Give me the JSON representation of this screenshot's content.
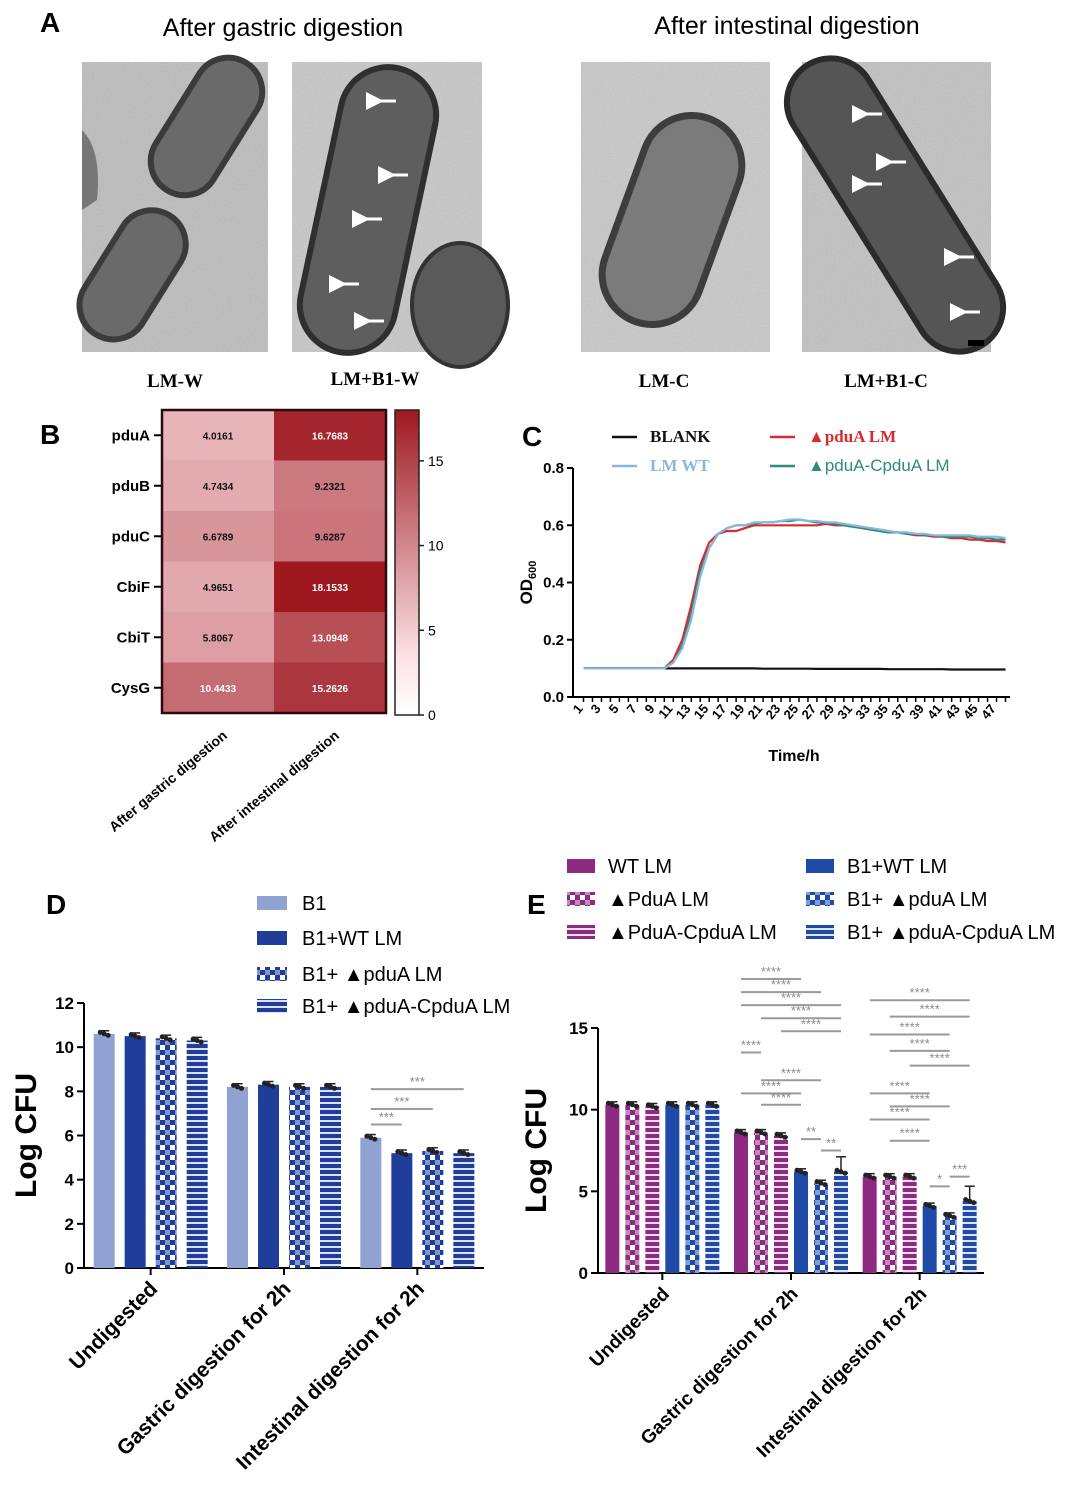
{
  "panel_a": {
    "letter": "A",
    "heading_gastric": "After gastric digestion",
    "heading_intestinal": "After intestinal digestion",
    "images": [
      {
        "label": "LM-W",
        "arrows": 0
      },
      {
        "label": "LM+B1-W",
        "arrows": 5
      },
      {
        "label": "LM-C",
        "arrows": 0
      },
      {
        "label": "LM+B1-C",
        "arrows": 5
      }
    ]
  },
  "chart_data": [
    {
      "panel": "B",
      "type": "heatmap",
      "rows": [
        "pduA",
        "pduB",
        "pduC",
        "CbiF",
        "CbiT",
        "CysG"
      ],
      "columns": [
        "After gastric digestion",
        "After intestinal digestion"
      ],
      "values": [
        [
          4.0161,
          16.7683
        ],
        [
          4.7434,
          9.2321
        ],
        [
          6.6789,
          9.6287
        ],
        [
          4.9651,
          18.1533
        ],
        [
          5.8067,
          13.0948
        ],
        [
          10.4433,
          15.2626
        ]
      ],
      "value_labels": [
        [
          "4.0161",
          "16.7683"
        ],
        [
          "4.7434",
          "9.2321"
        ],
        [
          "6.6789",
          "9.6287"
        ],
        [
          "4.9651",
          "18.1533"
        ],
        [
          "5.8067",
          "13.0948"
        ],
        [
          "10.4433",
          "15.2626"
        ]
      ],
      "colorbar": {
        "range": [
          0,
          18
        ],
        "ticks": [
          "0",
          "5",
          "10",
          "15"
        ],
        "low_color": "#fbe0e3",
        "high_color": "#9e1820"
      }
    },
    {
      "panel": "C",
      "type": "line",
      "ylabel": "OD",
      "ylabel_sub": "600",
      "xlabel": "Time/h",
      "ylim": [
        0,
        0.8
      ],
      "yticks": [
        "0.0",
        "0.2",
        "0.4",
        "0.6",
        "0.8"
      ],
      "x": [
        1,
        2,
        3,
        4,
        5,
        6,
        7,
        8,
        9,
        10,
        11,
        12,
        13,
        14,
        15,
        16,
        17,
        18,
        19,
        20,
        21,
        22,
        23,
        24,
        25,
        26,
        27,
        28,
        29,
        30,
        31,
        32,
        33,
        34,
        35,
        36,
        37,
        38,
        39,
        40,
        41,
        42,
        43,
        44,
        45,
        46,
        47,
        48
      ],
      "xticks": [
        "1",
        "3",
        "5",
        "7",
        "9",
        "11",
        "13",
        "15",
        "17",
        "19",
        "21",
        "23",
        "25",
        "27",
        "29",
        "31",
        "33",
        "35",
        "37",
        "39",
        "41",
        "43",
        "45",
        "47"
      ],
      "series": [
        {
          "name": "BLANK",
          "color": "#111111",
          "values": [
            0.1,
            0.1,
            0.1,
            0.1,
            0.1,
            0.1,
            0.1,
            0.1,
            0.1,
            0.1,
            0.1,
            0.1,
            0.1,
            0.1,
            0.1,
            0.1,
            0.1,
            0.1,
            0.1,
            0.1,
            0.099,
            0.099,
            0.099,
            0.099,
            0.099,
            0.099,
            0.098,
            0.098,
            0.098,
            0.098,
            0.098,
            0.098,
            0.098,
            0.098,
            0.097,
            0.097,
            0.097,
            0.097,
            0.097,
            0.097,
            0.097,
            0.096,
            0.096,
            0.096,
            0.096,
            0.096,
            0.096,
            0.096
          ]
        },
        {
          "name": "LM WT",
          "color": "#8ab8dc",
          "values": [
            0.1,
            0.1,
            0.1,
            0.1,
            0.1,
            0.1,
            0.1,
            0.1,
            0.1,
            0.1,
            0.12,
            0.17,
            0.27,
            0.42,
            0.52,
            0.57,
            0.59,
            0.6,
            0.6,
            0.61,
            0.61,
            0.61,
            0.615,
            0.62,
            0.62,
            0.615,
            0.615,
            0.61,
            0.61,
            0.605,
            0.6,
            0.595,
            0.59,
            0.585,
            0.58,
            0.575,
            0.575,
            0.57,
            0.57,
            0.565,
            0.565,
            0.565,
            0.565,
            0.565,
            0.56,
            0.56,
            0.56,
            0.555
          ]
        },
        {
          "name": "▲pduA LM",
          "color": "#d92b2b",
          "values": [
            0.1,
            0.1,
            0.1,
            0.1,
            0.1,
            0.1,
            0.1,
            0.1,
            0.1,
            0.1,
            0.13,
            0.2,
            0.32,
            0.46,
            0.54,
            0.57,
            0.58,
            0.58,
            0.59,
            0.6,
            0.6,
            0.6,
            0.6,
            0.6,
            0.6,
            0.6,
            0.6,
            0.605,
            0.6,
            0.6,
            0.595,
            0.59,
            0.585,
            0.58,
            0.575,
            0.575,
            0.57,
            0.565,
            0.565,
            0.56,
            0.56,
            0.555,
            0.555,
            0.55,
            0.55,
            0.545,
            0.545,
            0.54
          ]
        },
        {
          "name": "▲pduA-CpduA LM",
          "color": "#2e8b7e",
          "values": [
            0.1,
            0.1,
            0.1,
            0.1,
            0.1,
            0.1,
            0.1,
            0.1,
            0.1,
            0.1,
            0.12,
            0.18,
            0.29,
            0.44,
            0.52,
            0.57,
            0.59,
            0.6,
            0.6,
            0.605,
            0.61,
            0.61,
            0.615,
            0.615,
            0.62,
            0.615,
            0.61,
            0.61,
            0.605,
            0.6,
            0.595,
            0.59,
            0.585,
            0.58,
            0.575,
            0.575,
            0.57,
            0.57,
            0.565,
            0.565,
            0.56,
            0.56,
            0.56,
            0.56,
            0.555,
            0.555,
            0.55,
            0.55
          ]
        }
      ],
      "legend": "top"
    },
    {
      "panel": "D",
      "type": "bar",
      "ylabel": "Log CFU",
      "ylim": [
        0,
        12
      ],
      "yticks": [
        "0",
        "2",
        "4",
        "6",
        "8",
        "10",
        "12"
      ],
      "categories": [
        "Undigested",
        "Gastric digestion for 2h",
        "Intestinal digestion for 2h"
      ],
      "series": [
        {
          "name": "B1",
          "color": "#8fa2d2",
          "pattern": "solid",
          "values": [
            10.6,
            8.2,
            5.9
          ]
        },
        {
          "name": "B1+WT LM",
          "color": "#1f3d9a",
          "pattern": "solid",
          "values": [
            10.5,
            8.3,
            5.2
          ]
        },
        {
          "name": "B1+ ▲pduA LM",
          "color": "#1f3d9a",
          "pattern": "checker",
          "values": [
            10.4,
            8.2,
            5.3
          ]
        },
        {
          "name": "B1+ ▲pduA-CpduA LM",
          "color": "#1f3d9a",
          "pattern": "hstripe",
          "values": [
            10.3,
            8.2,
            5.2
          ]
        }
      ],
      "significance": [
        {
          "label": "***",
          "group": 2,
          "from": 0,
          "to": 3,
          "y": 8.1
        },
        {
          "label": "***",
          "group": 2,
          "from": 0,
          "to": 2,
          "y": 7.2
        },
        {
          "label": "***",
          "group": 2,
          "from": 0,
          "to": 1,
          "y": 6.5
        }
      ]
    },
    {
      "panel": "E",
      "type": "bar",
      "ylabel": "Log CFU",
      "ylim": [
        0,
        15
      ],
      "yticks": [
        "0",
        "5",
        "10",
        "15"
      ],
      "categories": [
        "Undigested",
        "Gastric digestion for 2h",
        "Intestinal digestion for 2h"
      ],
      "series": [
        {
          "name": "WT LM",
          "color": "#8e2a82",
          "pattern": "solid",
          "values": [
            10.3,
            8.6,
            5.9
          ]
        },
        {
          "name": "▲PduA LM",
          "color": "#8e2a82",
          "pattern": "checker",
          "values": [
            10.3,
            8.6,
            5.9
          ]
        },
        {
          "name": "▲PduA-CpduA LM",
          "color": "#8e2a82",
          "pattern": "hstripe",
          "values": [
            10.2,
            8.4,
            5.9
          ]
        },
        {
          "name": "B1+WT LM",
          "color": "#1f4aa8",
          "pattern": "solid",
          "values": [
            10.3,
            6.2,
            4.1
          ]
        },
        {
          "name": "B1+ ▲pduA LM",
          "color": "#1f4aa8",
          "pattern": "checker",
          "values": [
            10.3,
            5.5,
            3.5
          ]
        },
        {
          "name": "B1+ ▲pduA-CpduA LM",
          "color": "#1f4aa8",
          "pattern": "hstripe",
          "values": [
            10.3,
            6.2,
            4.4
          ]
        }
      ],
      "significance": [
        {
          "label": "****",
          "group": 1,
          "from": 0,
          "to": 3,
          "y": 18.0
        },
        {
          "label": "****",
          "group": 1,
          "from": 0,
          "to": 4,
          "y": 17.2
        },
        {
          "label": "****",
          "group": 1,
          "from": 0,
          "to": 5,
          "y": 16.4
        },
        {
          "label": "****",
          "group": 1,
          "from": 1,
          "to": 5,
          "y": 15.6
        },
        {
          "label": "****",
          "group": 1,
          "from": 2,
          "to": 5,
          "y": 14.8
        },
        {
          "label": "****",
          "group": 1,
          "from": 0,
          "to": 1,
          "y": 13.5
        },
        {
          "label": "****",
          "group": 1,
          "from": 1,
          "to": 4,
          "y": 11.8
        },
        {
          "label": "****",
          "group": 1,
          "from": 0,
          "to": 3,
          "y": 11.0
        },
        {
          "label": "****",
          "group": 1,
          "from": 1,
          "to": 3,
          "y": 10.3
        },
        {
          "label": "**",
          "group": 1,
          "from": 3,
          "to": 4,
          "y": 8.2
        },
        {
          "label": "**",
          "group": 1,
          "from": 4,
          "to": 5,
          "y": 7.5
        },
        {
          "label": "****",
          "group": 2,
          "from": 0,
          "to": 5,
          "y": 16.7
        },
        {
          "label": "****",
          "group": 2,
          "from": 1,
          "to": 5,
          "y": 15.7
        },
        {
          "label": "****",
          "group": 2,
          "from": 0,
          "to": 4,
          "y": 14.6
        },
        {
          "label": "****",
          "group": 2,
          "from": 1,
          "to": 4,
          "y": 13.6
        },
        {
          "label": "****",
          "group": 2,
          "from": 2,
          "to": 5,
          "y": 12.7
        },
        {
          "label": "****",
          "group": 2,
          "from": 0,
          "to": 3,
          "y": 11.0
        },
        {
          "label": "****",
          "group": 2,
          "from": 1,
          "to": 4,
          "y": 10.2
        },
        {
          "label": "****",
          "group": 2,
          "from": 0,
          "to": 3,
          "y": 9.4
        },
        {
          "label": "****",
          "group": 2,
          "from": 1,
          "to": 3,
          "y": 8.1
        },
        {
          "label": "*",
          "group": 2,
          "from": 3,
          "to": 4,
          "y": 5.3
        },
        {
          "label": "***",
          "group": 2,
          "from": 4,
          "to": 5,
          "y": 5.9
        }
      ]
    }
  ],
  "panel_letters": {
    "b": "B",
    "c": "C",
    "d": "D",
    "e": "E"
  }
}
